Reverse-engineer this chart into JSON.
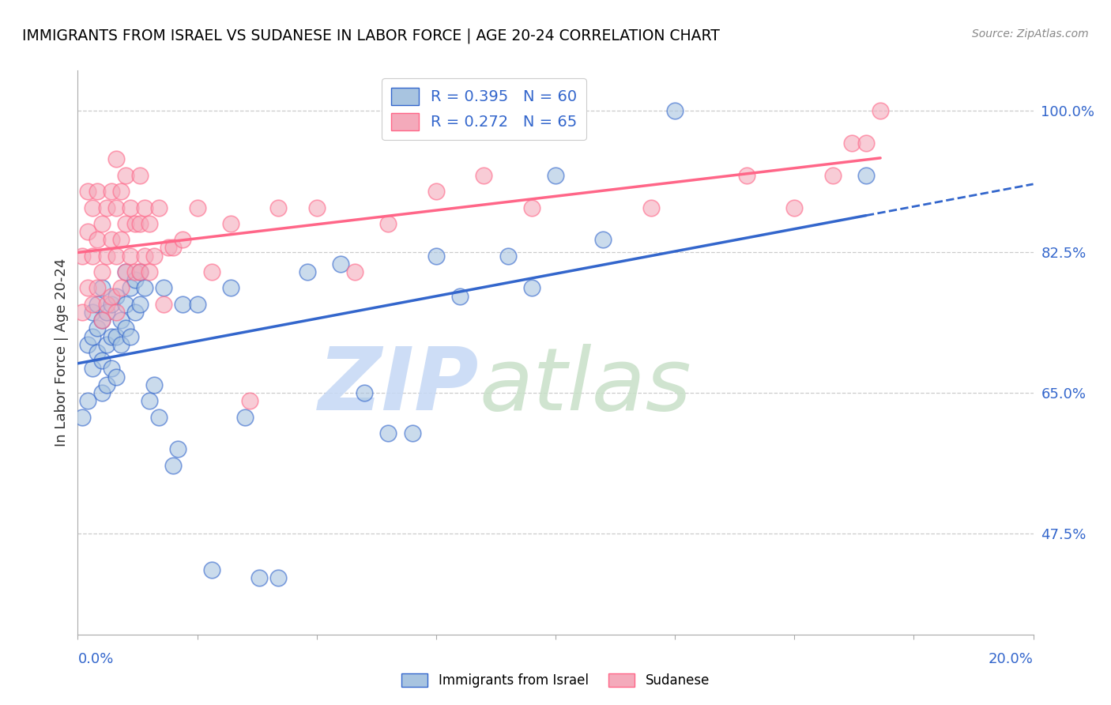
{
  "title": "IMMIGRANTS FROM ISRAEL VS SUDANESE IN LABOR FORCE | AGE 20-24 CORRELATION CHART",
  "source": "Source: ZipAtlas.com",
  "ylabel": "In Labor Force | Age 20-24",
  "legend_israel_R": "R = 0.395",
  "legend_israel_N": "N = 60",
  "legend_sudanese_R": "R = 0.272",
  "legend_sudanese_N": "N = 65",
  "israel_color": "#A8C4E0",
  "sudanese_color": "#F4AABB",
  "israel_line_color": "#3366CC",
  "sudanese_line_color": "#FF6688",
  "watermark_zip_color": "#C8D8F0",
  "watermark_atlas_color": "#D0E4D0",
  "xlim": [
    0.0,
    0.2
  ],
  "ylim": [
    0.35,
    1.05
  ],
  "grid_vals": [
    1.0,
    0.825,
    0.65,
    0.475
  ],
  "right_tick_labels": [
    "100.0%",
    "82.5%",
    "65.0%",
    "47.5%"
  ],
  "israel_x": [
    0.001,
    0.002,
    0.002,
    0.003,
    0.003,
    0.003,
    0.004,
    0.004,
    0.004,
    0.005,
    0.005,
    0.005,
    0.005,
    0.006,
    0.006,
    0.006,
    0.007,
    0.007,
    0.007,
    0.008,
    0.008,
    0.008,
    0.009,
    0.009,
    0.01,
    0.01,
    0.01,
    0.011,
    0.011,
    0.012,
    0.012,
    0.013,
    0.013,
    0.014,
    0.015,
    0.016,
    0.017,
    0.018,
    0.02,
    0.021,
    0.022,
    0.025,
    0.028,
    0.032,
    0.035,
    0.038,
    0.042,
    0.048,
    0.055,
    0.06,
    0.065,
    0.07,
    0.075,
    0.08,
    0.09,
    0.095,
    0.1,
    0.11,
    0.125,
    0.165
  ],
  "israel_y": [
    0.62,
    0.64,
    0.71,
    0.68,
    0.72,
    0.75,
    0.7,
    0.73,
    0.76,
    0.65,
    0.69,
    0.74,
    0.78,
    0.66,
    0.71,
    0.75,
    0.68,
    0.72,
    0.76,
    0.67,
    0.72,
    0.77,
    0.71,
    0.74,
    0.73,
    0.76,
    0.8,
    0.72,
    0.78,
    0.75,
    0.79,
    0.76,
    0.8,
    0.78,
    0.64,
    0.66,
    0.62,
    0.78,
    0.56,
    0.58,
    0.76,
    0.76,
    0.43,
    0.78,
    0.62,
    0.42,
    0.42,
    0.8,
    0.81,
    0.65,
    0.6,
    0.6,
    0.82,
    0.77,
    0.82,
    0.78,
    0.92,
    0.84,
    1.0,
    0.92
  ],
  "sudanese_x": [
    0.001,
    0.001,
    0.002,
    0.002,
    0.002,
    0.003,
    0.003,
    0.003,
    0.004,
    0.004,
    0.004,
    0.005,
    0.005,
    0.005,
    0.006,
    0.006,
    0.006,
    0.007,
    0.007,
    0.007,
    0.008,
    0.008,
    0.008,
    0.008,
    0.009,
    0.009,
    0.009,
    0.01,
    0.01,
    0.01,
    0.011,
    0.011,
    0.012,
    0.012,
    0.013,
    0.013,
    0.013,
    0.014,
    0.014,
    0.015,
    0.015,
    0.016,
    0.017,
    0.018,
    0.019,
    0.02,
    0.022,
    0.025,
    0.028,
    0.032,
    0.036,
    0.042,
    0.05,
    0.058,
    0.065,
    0.075,
    0.085,
    0.095,
    0.12,
    0.14,
    0.15,
    0.158,
    0.162,
    0.165,
    0.168
  ],
  "sudanese_y": [
    0.75,
    0.82,
    0.78,
    0.85,
    0.9,
    0.76,
    0.82,
    0.88,
    0.78,
    0.84,
    0.9,
    0.74,
    0.8,
    0.86,
    0.76,
    0.82,
    0.88,
    0.77,
    0.84,
    0.9,
    0.75,
    0.82,
    0.88,
    0.94,
    0.78,
    0.84,
    0.9,
    0.8,
    0.86,
    0.92,
    0.82,
    0.88,
    0.8,
    0.86,
    0.8,
    0.86,
    0.92,
    0.82,
    0.88,
    0.8,
    0.86,
    0.82,
    0.88,
    0.76,
    0.83,
    0.83,
    0.84,
    0.88,
    0.8,
    0.86,
    0.64,
    0.88,
    0.88,
    0.8,
    0.86,
    0.9,
    0.92,
    0.88,
    0.88,
    0.92,
    0.88,
    0.92,
    0.96,
    0.96,
    1.0
  ]
}
